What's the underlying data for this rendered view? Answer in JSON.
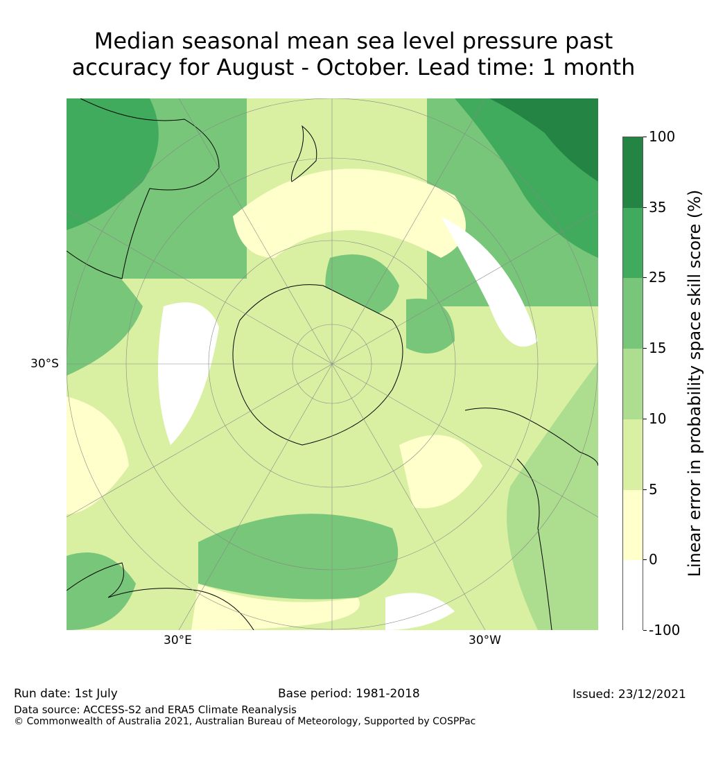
{
  "title_line1": "Median seasonal mean sea level pressure past",
  "title_line2": "accuracy for August - October. Lead time: 1 month",
  "map": {
    "lat_label": "30°S",
    "lon_labels": [
      "30°E",
      "30°W"
    ],
    "colors": {
      "white": "#ffffff",
      "pale": "#ffffcc",
      "light": "#d9f0a3",
      "mid": "#addd8e",
      "green": "#78c679",
      "strong": "#41ab5d",
      "dark": "#238443"
    }
  },
  "colorbar": {
    "label": "Linear error in probability space skill score (%)",
    "ticks": [
      "100",
      "35",
      "25",
      "15",
      "10",
      "5",
      "0",
      "-100"
    ],
    "colors": [
      "#238443",
      "#41ab5d",
      "#78c679",
      "#addd8e",
      "#d9f0a3",
      "#ffffcc",
      "#ffffff"
    ]
  },
  "footer": {
    "run_date": "Run date: 1st July",
    "base_period": "Base period: 1981-2018",
    "issued": "Issued: 23/12/2021",
    "data_source": "Data source: ACCESS-S2 and ERA5 Climate Reanalysis",
    "copyright": "© Commonwealth of Australia 2021, Australian Bureau of Meteorology, Supported by COSPPac"
  }
}
